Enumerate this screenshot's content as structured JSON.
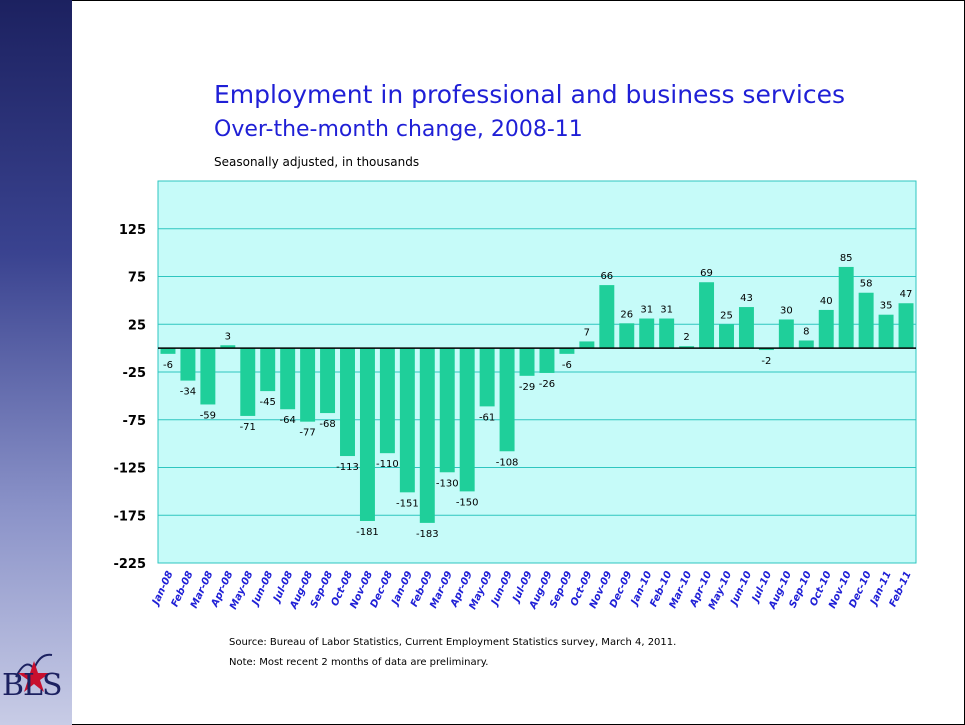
{
  "header": {
    "title": "Employment in professional and business services",
    "subtitle": "Over-the-month change, 2008-11",
    "units": "Seasonally adjusted, in thousands"
  },
  "footer": {
    "source": "Source:  Bureau of Labor Statistics, Current Employment Statistics survey, March 4, 2011.",
    "note": "Note:  Most recent 2 months of data are preliminary."
  },
  "logo": {
    "text": "BLS"
  },
  "colors": {
    "bar": "#1fcf9a",
    "plot_bg": "#c6fbf9",
    "plot_border": "#2ec6c0",
    "title": "#1f1fd6"
  },
  "chart_data": {
    "type": "bar",
    "title": "Employment in professional and business services",
    "subtitle": "Over-the-month change, 2008-11",
    "xlabel": "",
    "ylabel": "",
    "ylim": [
      -225,
      175
    ],
    "yticks": [
      125,
      75,
      25,
      -25,
      -75,
      -125,
      -175,
      -225
    ],
    "grid": true,
    "categories": [
      "Jan-08",
      "Feb-08",
      "Mar-08",
      "Apr-08",
      "May-08",
      "Jun-08",
      "Jul-08",
      "Aug-08",
      "Sep-08",
      "Oct-08",
      "Nov-08",
      "Dec-08",
      "Jan-09",
      "Feb-09",
      "Mar-09",
      "Apr-09",
      "May-09",
      "Jun-09",
      "Jul-09",
      "Aug-09",
      "Sep-09",
      "Oct-09",
      "Nov-09",
      "Dec-09",
      "Jan-10",
      "Feb-10",
      "Mar-10",
      "Apr-10",
      "May-10",
      "Jun-10",
      "Jul-10",
      "Aug-10",
      "Sep-10",
      "Oct-10",
      "Nov-10",
      "Dec-10",
      "Jan-11",
      "Feb-11"
    ],
    "values": [
      -6,
      -34,
      -59,
      3,
      -71,
      -45,
      -64,
      -77,
      -68,
      -113,
      -181,
      -110,
      -151,
      -183,
      -130,
      -150,
      -61,
      -108,
      -29,
      -26,
      -6,
      7,
      66,
      26,
      31,
      31,
      2,
      69,
      25,
      43,
      -2,
      30,
      8,
      40,
      85,
      58,
      35,
      47
    ]
  }
}
